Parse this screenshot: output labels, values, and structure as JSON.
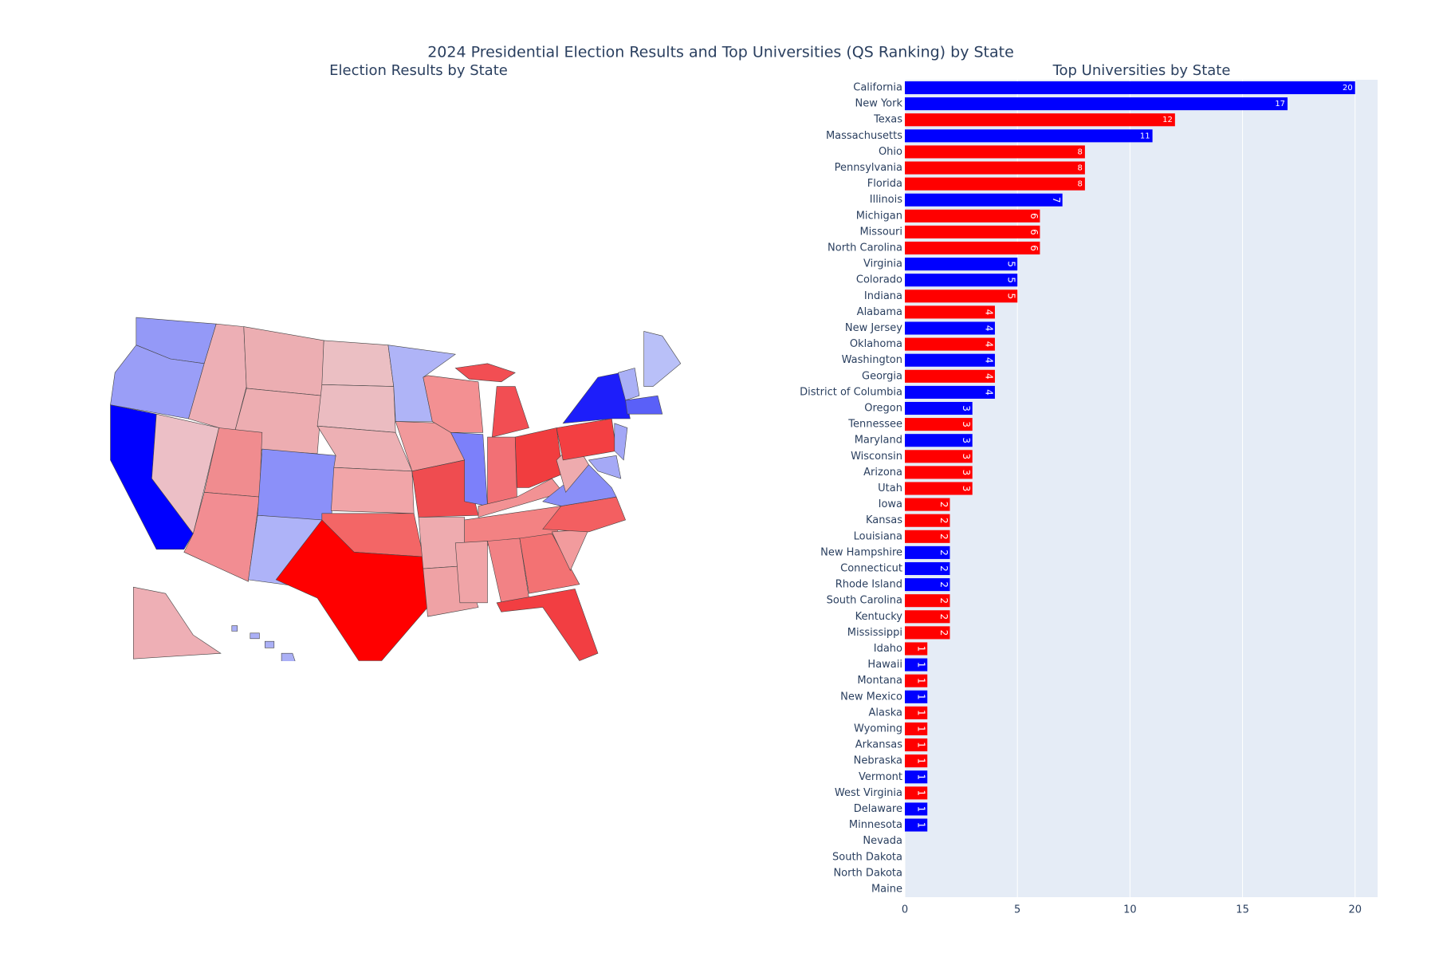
{
  "chart_data": [
    {
      "type": "choropleth",
      "title": "2024 Presidential Election Results and Top Universities (QS Ranking) by State",
      "subtitle": "Election Results by State",
      "region_colors": [
        "#9499f7",
        "#9a9ef7",
        "#0000ff",
        "#ecbfc6",
        "#edafb5",
        "#ecaeb2",
        "#edadb1",
        "#f08c8f",
        "#f28d92",
        "#8b90f9",
        "#aeb3f8",
        "#ebbfc3",
        "#ebbcc1",
        "#edb0b4",
        "#f1a5a8",
        "#f36666",
        "#ff0000",
        "#afb4f7",
        "#f1999b",
        "#ef4c50",
        "#eeabaf",
        "#efa2a5",
        "#f39092",
        "#7c80fa",
        "#f24e53",
        "#f27075",
        "#f13d3f",
        "#f29294",
        "#f38283",
        "#f0a4a7",
        "#f28285",
        "#f37273",
        "#f23e42",
        "#f29b9d",
        "#f35f61",
        "#8a8ff8",
        "#eeabae",
        "#f33f42",
        "#1d1efa",
        "#a3a7f6",
        "#a5a9f6",
        "#aab0f6",
        "#b9c0f8",
        "#5a60f8",
        "#eeafb5",
        "#abb0f6"
      ]
    },
    {
      "type": "bar",
      "title": "Top Universities by State",
      "categories": [
        "California",
        "New York",
        "Texas",
        "Massachusetts",
        "Ohio",
        "Pennsylvania",
        "Florida",
        "Illinois",
        "Michigan",
        "Missouri",
        "North Carolina",
        "Virginia",
        "Colorado",
        "Indiana",
        "Alabama",
        "New Jersey",
        "Oklahoma",
        "Washington",
        "Georgia",
        "District of Columbia",
        "Oregon",
        "Tennessee",
        "Maryland",
        "Wisconsin",
        "Arizona",
        "Utah",
        "Iowa",
        "Kansas",
        "Louisiana",
        "New Hampshire",
        "Connecticut",
        "Rhode Island",
        "South Carolina",
        "Kentucky",
        "Mississippi",
        "Idaho",
        "Hawaii",
        "Montana",
        "New Mexico",
        "Alaska",
        "Wyoming",
        "Arkansas",
        "Nebraska",
        "Vermont",
        "West Virginia",
        "Delaware",
        "Minnesota",
        "Nevada",
        "South Dakota",
        "North Dakota",
        "Maine"
      ],
      "values": [
        20,
        17,
        12,
        11,
        8,
        8,
        8,
        7,
        6,
        6,
        6,
        5,
        5,
        5,
        4,
        4,
        4,
        4,
        4,
        4,
        3,
        3,
        3,
        3,
        3,
        3,
        2,
        2,
        2,
        2,
        2,
        2,
        2,
        2,
        2,
        1,
        1,
        1,
        1,
        1,
        1,
        1,
        1,
        1,
        1,
        1,
        1,
        0,
        0,
        0,
        0
      ],
      "colors": [
        "#0000ff",
        "#0000ff",
        "#ff0000",
        "#0000ff",
        "#ff0000",
        "#ff0000",
        "#ff0000",
        "#0000ff",
        "#ff0000",
        "#ff0000",
        "#ff0000",
        "#0000ff",
        "#0000ff",
        "#ff0000",
        "#ff0000",
        "#0000ff",
        "#ff0000",
        "#0000ff",
        "#ff0000",
        "#0000ff",
        "#0000ff",
        "#ff0000",
        "#0000ff",
        "#ff0000",
        "#ff0000",
        "#ff0000",
        "#ff0000",
        "#ff0000",
        "#ff0000",
        "#0000ff",
        "#0000ff",
        "#0000ff",
        "#ff0000",
        "#ff0000",
        "#ff0000",
        "#ff0000",
        "#0000ff",
        "#ff0000",
        "#0000ff",
        "#ff0000",
        "#ff0000",
        "#ff0000",
        "#ff0000",
        "#0000ff",
        "#ff0000",
        "#0000ff",
        "#0000ff",
        "#ff0000",
        "#ff0000",
        "#ff0000",
        "#0000ff"
      ],
      "xlim": [
        0,
        21
      ],
      "xticks": [
        0,
        5,
        10,
        15,
        20
      ],
      "grid": true
    }
  ]
}
